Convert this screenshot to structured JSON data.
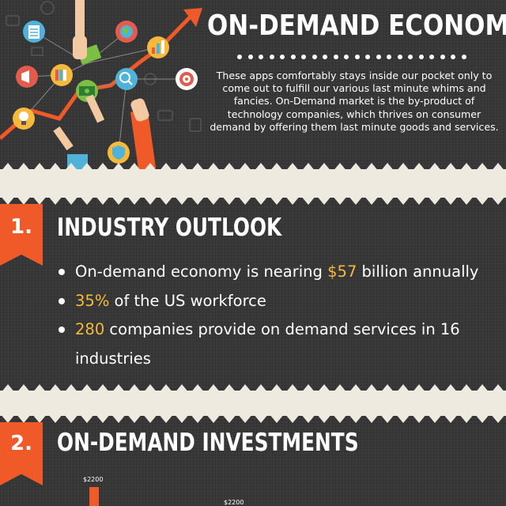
{
  "hero": {
    "title": "ON-DEMAND ECONOMY",
    "description": "These apps comfortably stays inside our pocket only to come out to fulfill our various last minute whims and fancies. On-Demand market is the by-product of technology companies, which thrives on consumer demand by offering them last minute goods and services."
  },
  "sections": [
    {
      "number": "1.",
      "title": "INDUSTRY OUTLOOK",
      "bullets": [
        {
          "pre": "On-demand economy is nearing ",
          "hl": "$57",
          "post": " billion annually"
        },
        {
          "pre": "",
          "hl": "35%",
          "post": " of the US workforce"
        },
        {
          "pre": "",
          "hl": "280",
          "post": " companies provide on demand services in 16 industries"
        }
      ]
    },
    {
      "number": "2.",
      "title": "ON-DEMAND INVESTMENTS",
      "bar_labels": [
        "$2200",
        "$2200"
      ]
    }
  ],
  "colors": {
    "background": "#3a3a3a",
    "accent_orange": "#f05a28",
    "highlight_yellow": "#f6b93b",
    "band_cream": "#efeae0"
  },
  "icons": [
    "document-icon",
    "globe-icon",
    "bar-chart-icon",
    "dollar-bill-icon",
    "money-icon",
    "target-icon",
    "books-icon",
    "lightbulb-icon",
    "shield-icon",
    "megaphone-icon",
    "hand-icon",
    "trend-arrow-icon"
  ]
}
